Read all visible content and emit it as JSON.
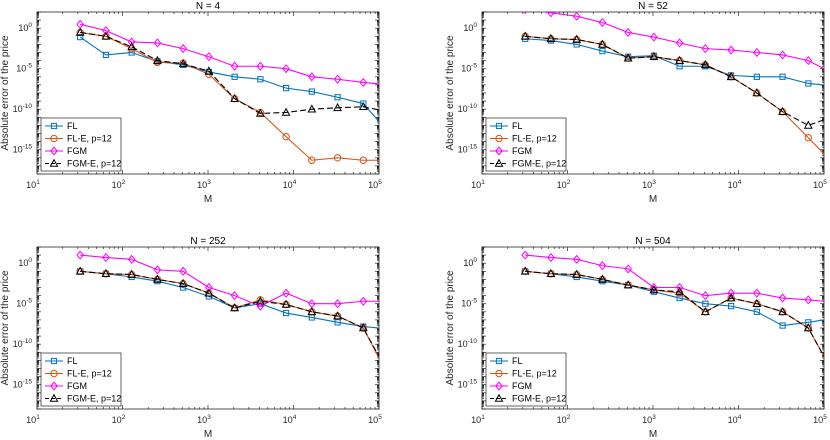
{
  "chart_data": [
    {
      "type": "line",
      "title": "N = 4",
      "xlabel": "M",
      "ylabel": "Absolute error of the price",
      "xscale": "log",
      "yscale": "log",
      "xlim": [
        10,
        100000
      ],
      "ylim": [
        1e-18,
        100.0
      ],
      "xticks": [
        10,
        100,
        1000,
        10000,
        100000
      ],
      "xtick_labels": [
        {
          "base": "10",
          "exp": "1"
        },
        {
          "base": "10",
          "exp": "2"
        },
        {
          "base": "10",
          "exp": "3"
        },
        {
          "base": "10",
          "exp": "4"
        },
        {
          "base": "10",
          "exp": "5"
        }
      ],
      "yticks": [
        1e-15,
        1e-10,
        1e-05,
        1
      ],
      "ytick_labels": [
        {
          "base": "10",
          "exp": "-15"
        },
        {
          "base": "10",
          "exp": "-10"
        },
        {
          "base": "10",
          "exp": "-5"
        },
        {
          "base": "10",
          "exp": "0"
        }
      ],
      "x": [
        32,
        64,
        128,
        256,
        512,
        1024,
        2048,
        4096,
        8192,
        16384,
        32768,
        65536,
        100000
      ],
      "series": [
        {
          "name": "FL",
          "color": "#0072BD",
          "marker": "square",
          "dash": "solid",
          "values": [
            0.08,
            0.0005,
            0.001,
            8e-05,
            3e-05,
            4e-06,
            1e-06,
            5e-07,
            4e-08,
            1.5e-08,
            3e-09,
            5e-10,
            3e-12
          ]
        },
        {
          "name": "FL-E, p=12",
          "color": "#D95319",
          "marker": "circle",
          "dash": "solid",
          "values": [
            0.3,
            0.1,
            0.003,
            6e-05,
            5e-05,
            2e-06,
            2e-09,
            4e-11,
            4e-14,
            5e-17,
            1e-16,
            5e-17,
            5e-17
          ]
        },
        {
          "name": "FGM",
          "color": "#FF00FF",
          "marker": "diamond",
          "dash": "solid",
          "values": [
            3.0,
            0.5,
            0.02,
            0.015,
            0.003,
            0.0003,
            2e-05,
            2e-05,
            1e-05,
            1e-06,
            5e-07,
            2e-07,
            1.3e-07
          ]
        },
        {
          "name": "FGM-E, p=12",
          "color": "#000000",
          "marker": "triangle",
          "dash": "dashed",
          "values": [
            0.3,
            0.1,
            0.005,
            0.0001,
            4e-05,
            5e-06,
            2e-09,
            3e-11,
            4e-11,
            1e-10,
            1.5e-10,
            2e-10,
            8e-11
          ]
        }
      ]
    },
    {
      "type": "line",
      "title": "N = 52",
      "xlabel": "M",
      "ylabel": "Absolute error of the price",
      "xscale": "log",
      "yscale": "log",
      "xlim": [
        10,
        100000
      ],
      "ylim": [
        1e-18,
        100.0
      ],
      "xticks": [
        10,
        100,
        1000,
        10000,
        100000
      ],
      "xtick_labels": [
        {
          "base": "10",
          "exp": "1"
        },
        {
          "base": "10",
          "exp": "2"
        },
        {
          "base": "10",
          "exp": "3"
        },
        {
          "base": "10",
          "exp": "4"
        },
        {
          "base": "10",
          "exp": "5"
        }
      ],
      "yticks": [
        1e-15,
        1e-10,
        1e-05,
        1
      ],
      "ytick_labels": [
        {
          "base": "10",
          "exp": "-15"
        },
        {
          "base": "10",
          "exp": "-10"
        },
        {
          "base": "10",
          "exp": "-5"
        },
        {
          "base": "10",
          "exp": "0"
        }
      ],
      "x": [
        32,
        64,
        128,
        256,
        512,
        1024,
        2048,
        4096,
        8192,
        16384,
        32768,
        65536,
        100000
      ],
      "series": [
        {
          "name": "FL",
          "color": "#0072BD",
          "marker": "square",
          "dash": "solid",
          "values": [
            0.05,
            0.03,
            0.01,
            0.0015,
            0.0003,
            0.0004,
            2e-05,
            2e-05,
            1.5e-06,
            1e-06,
            1e-06,
            1.5e-07,
            1e-07
          ]
        },
        {
          "name": "FL-E, p=12",
          "color": "#D95319",
          "marker": "circle",
          "dash": "solid",
          "values": [
            0.1,
            0.05,
            0.04,
            0.01,
            0.0002,
            0.0003,
            0.0001,
            3e-05,
            1e-06,
            1e-08,
            5e-11,
            3e-14,
            3e-16
          ]
        },
        {
          "name": "FGM",
          "color": "#FF00FF",
          "marker": "diamond",
          "dash": "solid",
          "values": [
            200.0,
            80.0,
            30.0,
            5.0,
            0.3,
            0.08,
            0.015,
            0.003,
            0.002,
            0.001,
            0.0005,
            0.0001,
            1e-05
          ]
        },
        {
          "name": "FGM-E, p=12",
          "color": "#000000",
          "marker": "triangle",
          "dash": "dashed",
          "values": [
            0.1,
            0.05,
            0.04,
            0.01,
            0.0002,
            0.0003,
            0.0001,
            3e-05,
            1e-06,
            1e-08,
            5e-11,
            1e-12,
            5e-12
          ]
        }
      ]
    },
    {
      "type": "line",
      "title": "N = 252",
      "xlabel": "M",
      "ylabel": "Absolute error of the price",
      "xscale": "log",
      "yscale": "log",
      "xlim": [
        10,
        100000
      ],
      "ylim": [
        1e-18,
        100.0
      ],
      "xticks": [
        10,
        100,
        1000,
        10000,
        100000
      ],
      "xtick_labels": [
        {
          "base": "10",
          "exp": "1"
        },
        {
          "base": "10",
          "exp": "2"
        },
        {
          "base": "10",
          "exp": "3"
        },
        {
          "base": "10",
          "exp": "4"
        },
        {
          "base": "10",
          "exp": "5"
        }
      ],
      "yticks": [
        1e-15,
        1e-10,
        1e-05,
        1
      ],
      "ytick_labels": [
        {
          "base": "10",
          "exp": "-15"
        },
        {
          "base": "10",
          "exp": "-10"
        },
        {
          "base": "10",
          "exp": "-5"
        },
        {
          "base": "10",
          "exp": "0"
        }
      ],
      "x": [
        32,
        64,
        128,
        256,
        512,
        1024,
        2048,
        4096,
        8192,
        16384,
        32768,
        65536,
        100000
      ],
      "series": [
        {
          "name": "FL",
          "color": "#0072BD",
          "marker": "square",
          "dash": "solid",
          "values": [
            0.1,
            0.05,
            0.02,
            0.006,
            0.001,
            8e-05,
            3e-06,
            1e-05,
            7e-07,
            2e-07,
            5e-08,
            1.5e-08,
            1e-08
          ]
        },
        {
          "name": "FL-E, p=12",
          "color": "#D95319",
          "marker": "circle",
          "dash": "solid",
          "values": [
            0.1,
            0.05,
            0.04,
            0.01,
            0.003,
            0.0002,
            3e-06,
            3e-05,
            8e-06,
            1e-06,
            3e-07,
            1e-08,
            2e-12
          ]
        },
        {
          "name": "FGM",
          "color": "#FF00FF",
          "marker": "diamond",
          "dash": "solid",
          "values": [
            10.0,
            5.0,
            3.0,
            0.15,
            0.1,
            0.001,
            0.0001,
            5e-06,
            0.0002,
            1e-05,
            1e-05,
            2e-05,
            2e-05
          ]
        },
        {
          "name": "FGM-E, p=12",
          "color": "#000000",
          "marker": "triangle",
          "dash": "dashed",
          "values": [
            0.1,
            0.05,
            0.04,
            0.01,
            0.003,
            0.0002,
            3e-06,
            2e-05,
            8e-06,
            1e-06,
            3e-07,
            1e-08,
            3e-12
          ]
        }
      ]
    },
    {
      "type": "line",
      "title": "N = 504",
      "xlabel": "M",
      "ylabel": "Absolute error of the price",
      "xscale": "log",
      "yscale": "log",
      "xlim": [
        10,
        100000
      ],
      "ylim": [
        1e-18,
        100.0
      ],
      "xticks": [
        10,
        100,
        1000,
        10000,
        100000
      ],
      "xtick_labels": [
        {
          "base": "10",
          "exp": "1"
        },
        {
          "base": "10",
          "exp": "2"
        },
        {
          "base": "10",
          "exp": "3"
        },
        {
          "base": "10",
          "exp": "4"
        },
        {
          "base": "10",
          "exp": "5"
        }
      ],
      "yticks": [
        1e-15,
        1e-10,
        1e-05,
        1
      ],
      "ytick_labels": [
        {
          "base": "10",
          "exp": "-15"
        },
        {
          "base": "10",
          "exp": "-10"
        },
        {
          "base": "10",
          "exp": "-5"
        },
        {
          "base": "10",
          "exp": "0"
        }
      ],
      "x": [
        32,
        64,
        128,
        256,
        512,
        1024,
        2048,
        4096,
        8192,
        16384,
        32768,
        65536,
        100000
      ],
      "series": [
        {
          "name": "FL",
          "color": "#0072BD",
          "marker": "square",
          "dash": "solid",
          "values": [
            0.1,
            0.05,
            0.02,
            0.006,
            0.002,
            0.0003,
            5e-05,
            1e-05,
            5e-06,
            1e-06,
            2e-08,
            5e-08,
            1e-07
          ]
        },
        {
          "name": "FL-E, p=12",
          "color": "#D95319",
          "marker": "circle",
          "dash": "solid",
          "values": [
            0.1,
            0.05,
            0.04,
            0.01,
            0.002,
            0.0005,
            0.0002,
            1e-06,
            5e-05,
            1e-05,
            1e-06,
            1e-08,
            3e-12
          ]
        },
        {
          "name": "FGM",
          "color": "#FF00FF",
          "marker": "diamond",
          "dash": "solid",
          "values": [
            10.0,
            5.0,
            3.0,
            0.5,
            0.2,
            0.001,
            0.001,
            0.0001,
            0.0002,
            0.0002,
            5e-05,
            3e-05,
            2e-05
          ]
        },
        {
          "name": "FGM-E, p=12",
          "color": "#000000",
          "marker": "triangle",
          "dash": "dashed",
          "values": [
            0.1,
            0.05,
            0.04,
            0.01,
            0.002,
            0.0005,
            0.0003,
            1e-06,
            5e-05,
            1e-05,
            1e-06,
            1e-08,
            3e-12
          ]
        }
      ]
    }
  ]
}
